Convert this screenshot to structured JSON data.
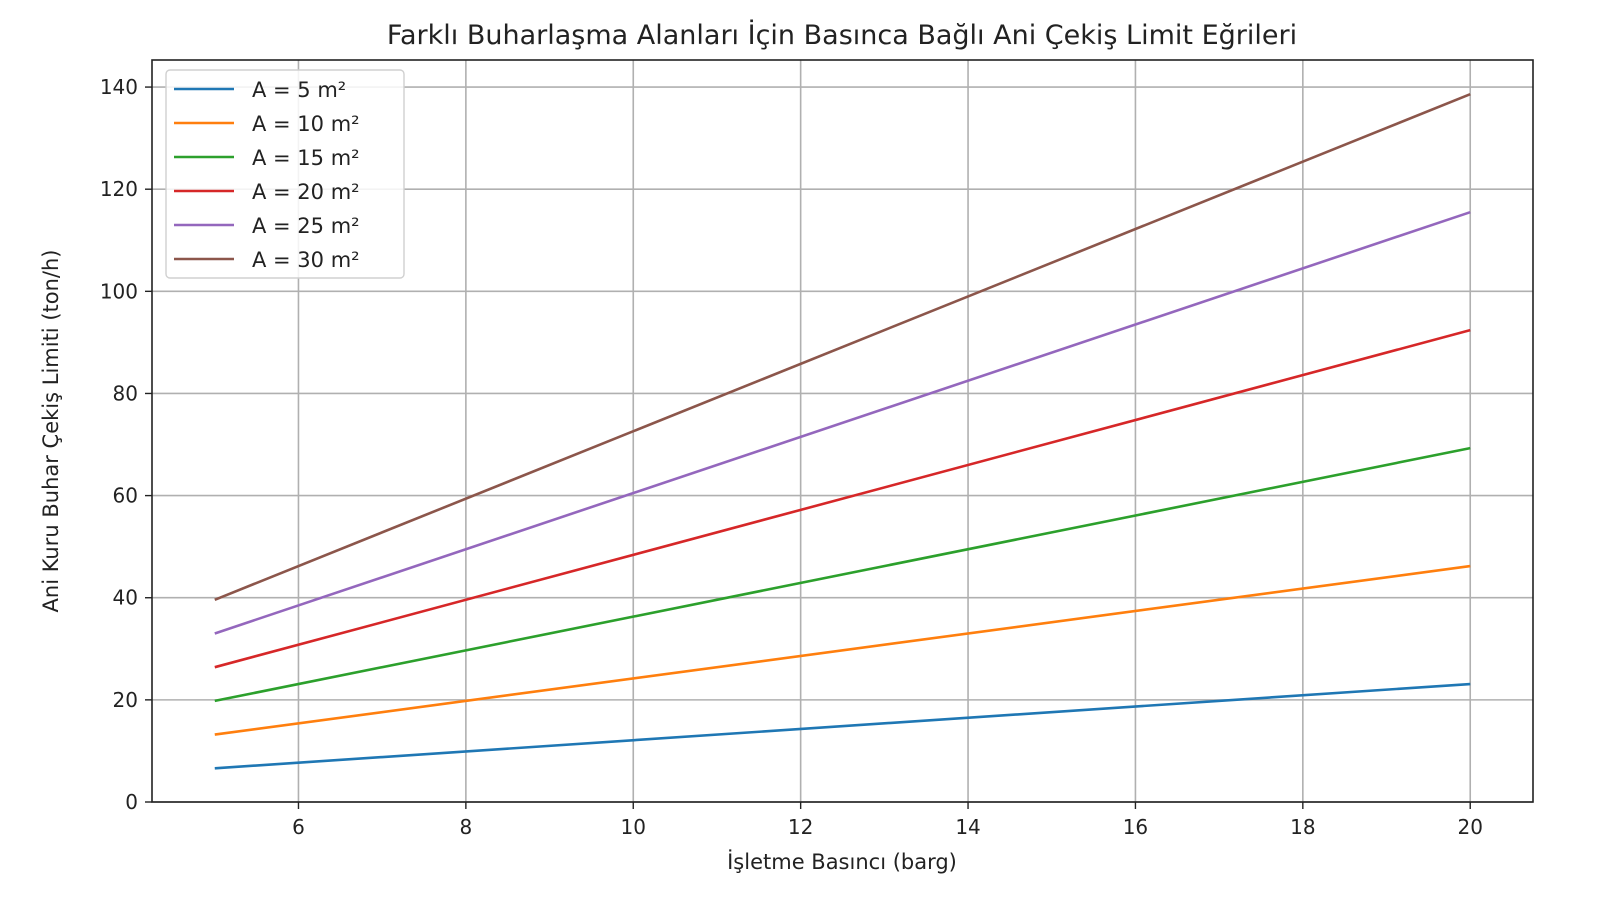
{
  "chart_data": {
    "type": "line",
    "title": "Farklı Buharlaşma Alanları İçin Basınca Bağlı Ani Çekiş Limit Eğrileri",
    "xlabel": "İşletme Basıncı (barg)",
    "ylabel": "Ani Kuru Buhar Çekiş Limiti (ton/h)",
    "xlim": [
      4.25,
      20.75
    ],
    "ylim": [
      0,
      145.3
    ],
    "xticks": [
      6,
      8,
      10,
      12,
      14,
      16,
      18,
      20
    ],
    "yticks": [
      0,
      20,
      40,
      60,
      80,
      100,
      120,
      140
    ],
    "grid": true,
    "legend_position": "top-left",
    "x": [
      5,
      20
    ],
    "series": [
      {
        "name": "A = 5 m²",
        "color": "#1f77b4",
        "values": [
          6.6,
          23.1
        ]
      },
      {
        "name": "A = 10 m²",
        "color": "#ff7f0e",
        "values": [
          13.2,
          46.2
        ]
      },
      {
        "name": "A = 15 m²",
        "color": "#2ca02c",
        "values": [
          19.8,
          69.3
        ]
      },
      {
        "name": "A = 20 m²",
        "color": "#d62728",
        "values": [
          26.4,
          92.4
        ]
      },
      {
        "name": "A = 25 m²",
        "color": "#9467bd",
        "values": [
          33.0,
          115.5
        ]
      },
      {
        "name": "A = 30 m²",
        "color": "#8c564b",
        "values": [
          39.6,
          138.6
        ]
      }
    ]
  }
}
